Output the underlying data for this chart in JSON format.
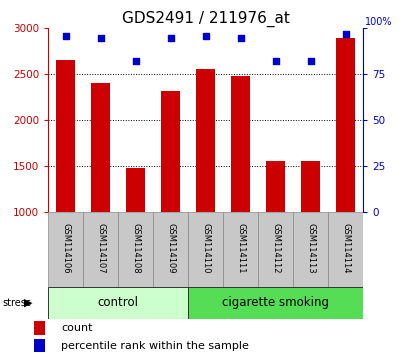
{
  "title": "GDS2491 / 211976_at",
  "samples": [
    "GSM114106",
    "GSM114107",
    "GSM114108",
    "GSM114109",
    "GSM114110",
    "GSM114111",
    "GSM114112",
    "GSM114113",
    "GSM114114"
  ],
  "counts": [
    2660,
    2410,
    1480,
    2320,
    2560,
    2480,
    1560,
    1555,
    2900
  ],
  "percentiles": [
    96,
    95,
    82,
    95,
    96,
    95,
    82,
    82,
    97
  ],
  "ymin": 1000,
  "ymax": 3000,
  "yticks_left": [
    1000,
    1500,
    2000,
    2500,
    3000
  ],
  "yticks_right": [
    0,
    25,
    50,
    75,
    100
  ],
  "bar_color": "#cc0000",
  "dot_color": "#0000cc",
  "group_info": [
    {
      "label": "control",
      "start": 0,
      "end": 3,
      "color": "#ccffcc"
    },
    {
      "label": "cigarette smoking",
      "start": 4,
      "end": 8,
      "color": "#55dd55"
    }
  ],
  "stress_label": "stress",
  "legend_count_label": "count",
  "legend_pct_label": "percentile rank within the sample",
  "title_fontsize": 11,
  "bar_bottom": 1000,
  "background_color": "#ffffff",
  "tick_area_color": "#c8c8c8",
  "label_fontsize": 6.0,
  "group_fontsize": 8.5
}
